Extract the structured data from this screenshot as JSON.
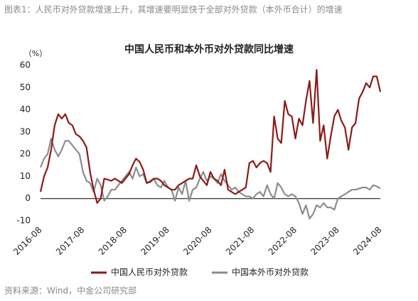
{
  "chart_data": {
    "type": "line",
    "caption": "图表1：人民币对外贷款增速上升，其增速要明显快于全部对外贷款（本外币合计）的增速",
    "title": "中国人民币和本外币对外贷款同比增速",
    "y_unit": "（%）",
    "source": "资料来源：Wind，中金公司研究部",
    "categories": [
      "2016-08",
      null,
      null,
      null,
      null,
      null,
      null,
      null,
      null,
      null,
      null,
      null,
      "2017-08",
      null,
      null,
      null,
      null,
      null,
      null,
      null,
      null,
      null,
      null,
      null,
      "2018-08",
      null,
      null,
      null,
      null,
      null,
      null,
      null,
      null,
      null,
      null,
      null,
      "2019-08",
      null,
      null,
      null,
      null,
      null,
      null,
      null,
      null,
      null,
      null,
      null,
      "2020-08",
      null,
      null,
      null,
      null,
      null,
      null,
      null,
      null,
      null,
      null,
      null,
      "2021-08",
      null,
      null,
      null,
      null,
      null,
      null,
      null,
      null,
      null,
      null,
      null,
      "2022-08",
      null,
      null,
      null,
      null,
      null,
      null,
      null,
      null,
      null,
      null,
      null,
      "2023-08",
      null,
      null,
      null,
      null,
      null,
      null,
      null,
      null,
      null,
      null,
      null,
      "2024-08"
    ],
    "series": [
      {
        "name": "中国人民币对外贷款",
        "color": "#8b1a1a",
        "values": [
          3,
          10,
          14,
          22,
          33,
          38,
          36,
          38,
          34,
          33,
          29,
          28,
          26,
          23,
          12,
          4,
          -2,
          0,
          9,
          8.5,
          8,
          9,
          8,
          7,
          9,
          11,
          15,
          18,
          16.5,
          13,
          7,
          7.5,
          9,
          9,
          8,
          6,
          5,
          4,
          4,
          6,
          7,
          8,
          9,
          9,
          15,
          10,
          8,
          6,
          12,
          9,
          8,
          6,
          13,
          4,
          3,
          2,
          3,
          4,
          5,
          16,
          17,
          14,
          16,
          17,
          16,
          12,
          37,
          27,
          25,
          44,
          38,
          37,
          27,
          36,
          33,
          44,
          53,
          34,
          58,
          26,
          33,
          18,
          28,
          37,
          40,
          35,
          32,
          22,
          32,
          34,
          45,
          48,
          52,
          50,
          55,
          55,
          48
        ]
      },
      {
        "name": "中国本外币对外贷款",
        "color": "#8c8c8c",
        "values": [
          14,
          18,
          20,
          27,
          22,
          19,
          22,
          26,
          26,
          24,
          22,
          20,
          12,
          8,
          7,
          3,
          9,
          6,
          -1,
          1,
          4,
          4,
          6,
          8,
          10,
          12,
          9,
          14,
          10,
          11,
          7,
          8,
          9,
          6,
          5,
          8,
          5,
          4,
          -1,
          5,
          2,
          8,
          -1,
          4,
          5,
          9,
          12,
          8,
          10,
          9,
          7,
          11,
          8,
          6,
          4,
          5,
          3,
          2,
          1,
          1,
          0,
          2,
          3,
          1,
          6,
          2,
          0,
          7,
          5,
          2,
          1,
          2,
          1,
          -2,
          -7,
          -3,
          -9,
          -7,
          -3,
          -4,
          -2,
          -4,
          -4,
          -5,
          0,
          1,
          2,
          3,
          4,
          4,
          4.5,
          5,
          5,
          4,
          6,
          5.5,
          4.5
        ]
      }
    ],
    "ylim": [
      -10,
      60
    ],
    "yticks": [
      -10,
      0,
      10,
      20,
      30,
      40,
      50,
      60
    ],
    "grid": false
  }
}
